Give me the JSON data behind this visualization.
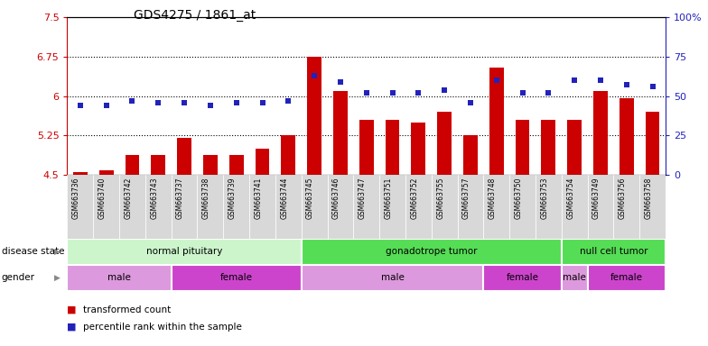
{
  "title": "GDS4275 / 1861_at",
  "samples": [
    "GSM663736",
    "GSM663740",
    "GSM663742",
    "GSM663743",
    "GSM663737",
    "GSM663738",
    "GSM663739",
    "GSM663741",
    "GSM663744",
    "GSM663745",
    "GSM663746",
    "GSM663747",
    "GSM663751",
    "GSM663752",
    "GSM663755",
    "GSM663757",
    "GSM663748",
    "GSM663750",
    "GSM663753",
    "GSM663754",
    "GSM663749",
    "GSM663756",
    "GSM663758"
  ],
  "transformed_count": [
    4.55,
    4.58,
    4.88,
    4.87,
    5.2,
    4.87,
    4.87,
    5.0,
    5.25,
    6.75,
    6.1,
    5.55,
    5.55,
    5.5,
    5.7,
    5.25,
    6.55,
    5.55,
    5.55,
    5.55,
    6.1,
    5.95,
    5.7
  ],
  "percentile_rank": [
    44,
    44,
    47,
    46,
    46,
    44,
    46,
    46,
    47,
    63,
    59,
    52,
    52,
    52,
    54,
    46,
    60,
    52,
    52,
    60,
    60,
    57,
    56
  ],
  "ylim_left": [
    4.5,
    7.5
  ],
  "ylim_right": [
    0,
    100
  ],
  "yticks_left": [
    4.5,
    5.25,
    6.0,
    6.75,
    7.5
  ],
  "ytick_labels_left": [
    "4.5",
    "5.25",
    "6",
    "6.75",
    "7.5"
  ],
  "yticks_right": [
    0,
    25,
    50,
    75,
    100
  ],
  "ytick_labels_right": [
    "0",
    "25",
    "50",
    "75",
    "100%"
  ],
  "hlines": [
    5.25,
    6.0,
    6.75
  ],
  "bar_color": "#cc0000",
  "dot_color": "#2222bb",
  "disease_state_groups": [
    {
      "label": "normal pituitary",
      "start": 0,
      "end": 9,
      "color": "#ccf5cc"
    },
    {
      "label": "gonadotrope tumor",
      "start": 9,
      "end": 19,
      "color": "#55dd55"
    },
    {
      "label": "null cell tumor",
      "start": 19,
      "end": 23,
      "color": "#55dd55"
    }
  ],
  "gender_groups": [
    {
      "label": "male",
      "start": 0,
      "end": 4,
      "color": "#dd99dd"
    },
    {
      "label": "female",
      "start": 4,
      "end": 9,
      "color": "#cc44cc"
    },
    {
      "label": "male",
      "start": 9,
      "end": 16,
      "color": "#dd99dd"
    },
    {
      "label": "female",
      "start": 16,
      "end": 19,
      "color": "#cc44cc"
    },
    {
      "label": "male",
      "start": 19,
      "end": 20,
      "color": "#dd99dd"
    },
    {
      "label": "female",
      "start": 20,
      "end": 23,
      "color": "#cc44cc"
    }
  ],
  "legend_items": [
    {
      "label": "transformed count",
      "color": "#cc0000"
    },
    {
      "label": "percentile rank within the sample",
      "color": "#2222bb"
    }
  ],
  "tick_fontsize": 8,
  "sample_fontsize": 5.5,
  "label_fontsize": 7.5,
  "row_text_fontsize": 7.5
}
